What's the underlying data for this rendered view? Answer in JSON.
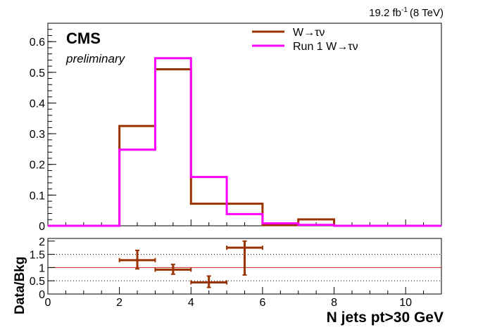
{
  "chart_data": [
    {
      "type": "line",
      "step": true,
      "lumi_text": {
        "value": "19.2 fb",
        "sup": "-1",
        "energy": "(8 TeV)"
      },
      "experiment": "CMS",
      "status": "preliminary",
      "xlim": [
        0,
        11
      ],
      "ylim": [
        0,
        0.66
      ],
      "yticks": [
        0,
        0.1,
        0.2,
        0.3,
        0.4,
        0.5,
        0.6
      ],
      "ytick_labels": [
        "0",
        "0.1",
        "0.2",
        "0.3",
        "0.4",
        "0.5",
        "0.6"
      ],
      "bin_edges": [
        0,
        1,
        2,
        3,
        4,
        5,
        6,
        7,
        8,
        9,
        10,
        11
      ],
      "series": [
        {
          "name": "W→τν",
          "color": "#993300",
          "values": [
            0,
            0,
            0.325,
            0.51,
            0.072,
            0.072,
            0.002,
            0.021,
            0,
            0,
            0
          ]
        },
        {
          "name": "Run 1 W→τν",
          "color": "#ff00ff",
          "values": [
            0,
            0,
            0.248,
            0.546,
            0.159,
            0.038,
            0.008,
            0.003,
            0,
            0,
            0
          ]
        }
      ],
      "legend_position": "top-right"
    },
    {
      "type": "scatter",
      "ylabel": "Data/Bkg",
      "xlabel": "N jets pt>30 GeV",
      "xlim": [
        0,
        11
      ],
      "ylim": [
        0,
        2.1
      ],
      "xticks": [
        0,
        2,
        4,
        6,
        8,
        10
      ],
      "xtick_labels": [
        "0",
        "2",
        "4",
        "6",
        "8",
        "10"
      ],
      "yticks": [
        0,
        0.5,
        1,
        1.5,
        2
      ],
      "ytick_labels": [
        "0",
        "0.5",
        "1",
        "1.5",
        "2"
      ],
      "reference_lines": [
        0.5,
        1,
        1.5
      ],
      "points": [
        {
          "x": 2.5,
          "y": 1.28,
          "xerr": 0.5,
          "ylo": 0.95,
          "yhi": 1.65
        },
        {
          "x": 3.5,
          "y": 0.92,
          "xerr": 0.5,
          "ylo": 0.75,
          "yhi": 1.12
        },
        {
          "x": 4.5,
          "y": 0.44,
          "xerr": 0.5,
          "ylo": 0.25,
          "yhi": 0.68
        },
        {
          "x": 5.5,
          "y": 1.75,
          "xerr": 0.5,
          "ylo": 0.72,
          "yhi": 2.0
        }
      ],
      "point_color": "#993300"
    }
  ]
}
